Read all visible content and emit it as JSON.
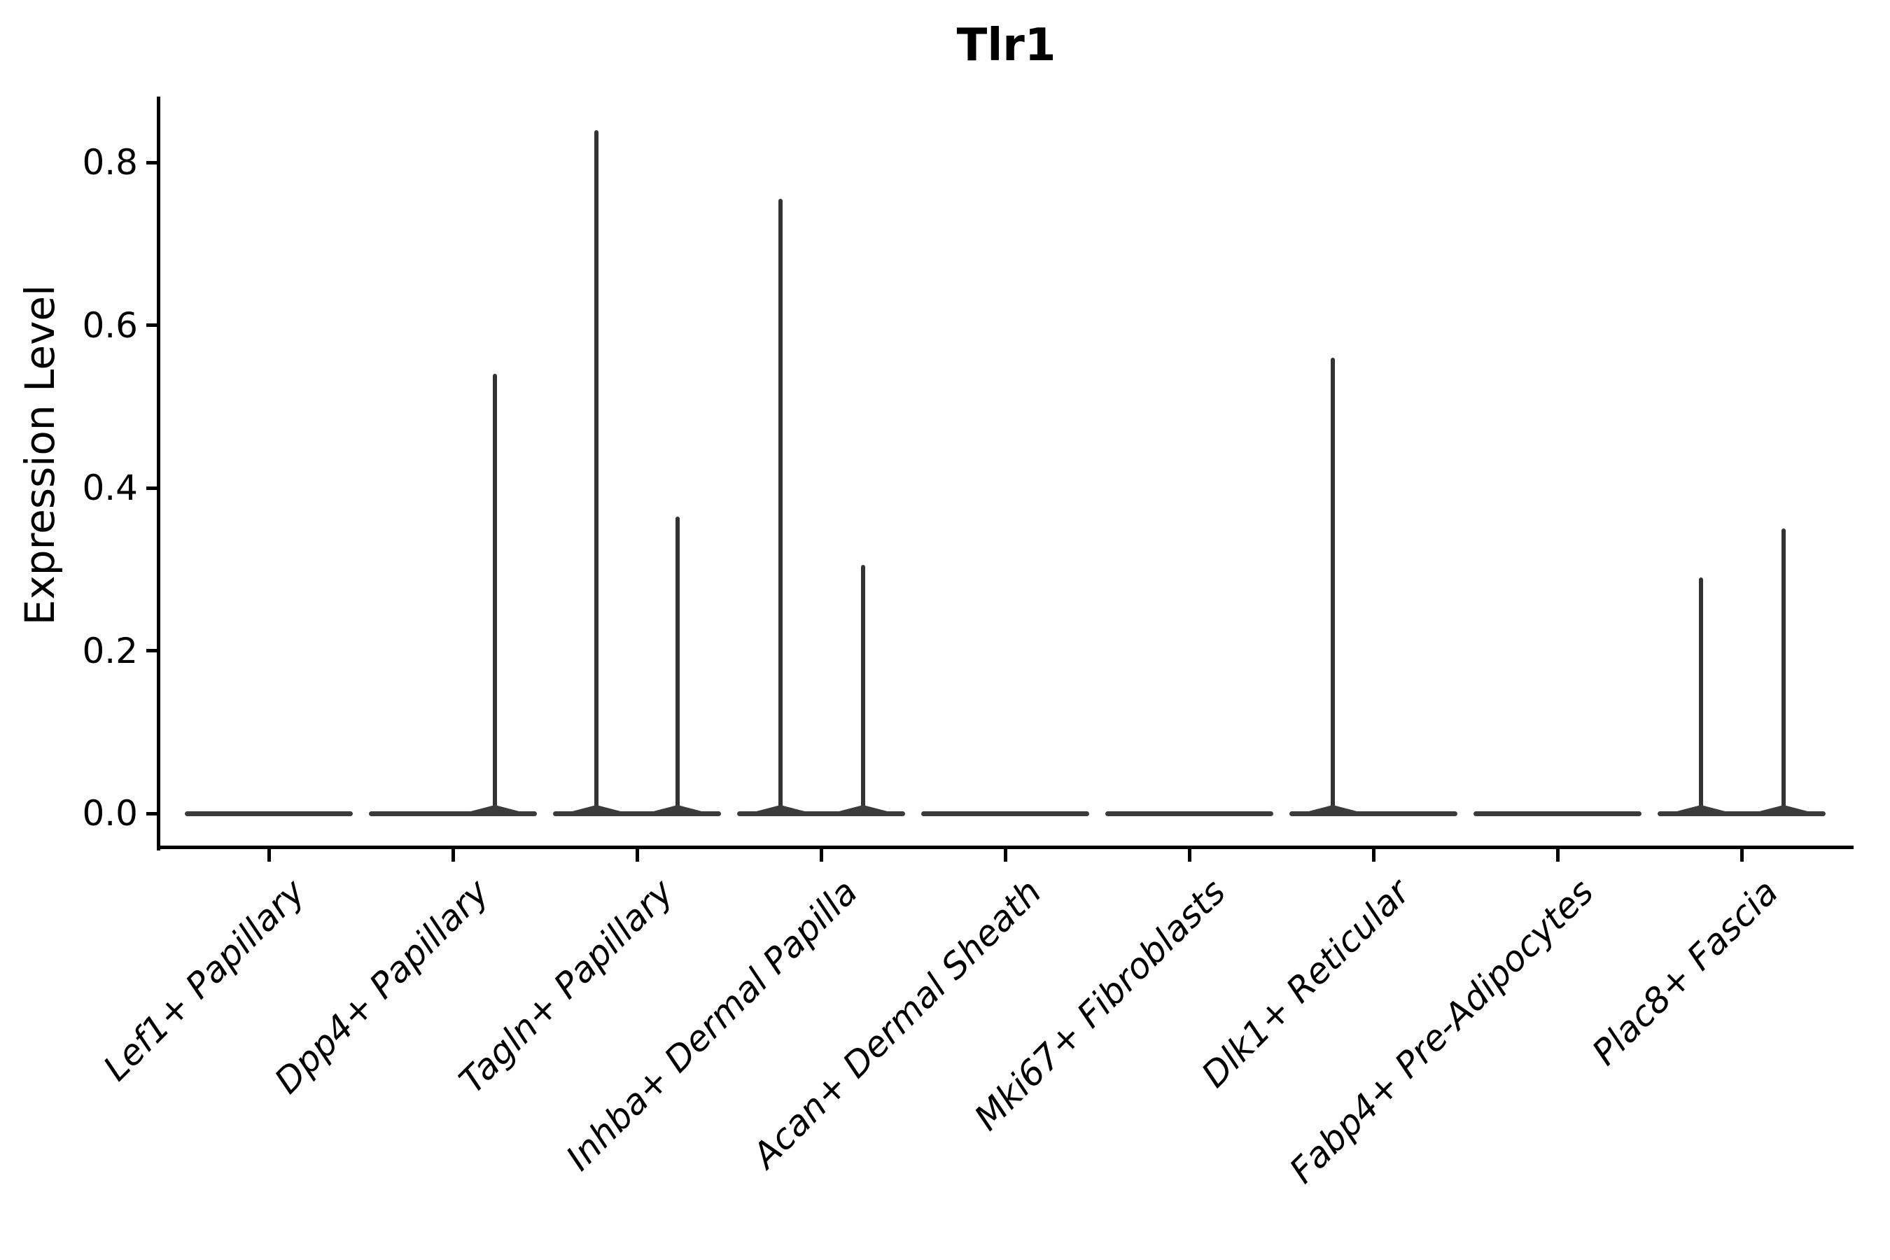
{
  "title": "Tlr1",
  "ylabel": "Expression Level",
  "colors": {
    "background": "#ffffff",
    "spine": "#000000",
    "violin_line": "#3b3b3b",
    "spike_line": "#333333",
    "text": "#000000"
  },
  "chart_data": {
    "type": "violin",
    "title": "Tlr1",
    "xlabel": "",
    "ylabel": "Expression Level",
    "ylim": [
      -0.04,
      0.88
    ],
    "grid": false,
    "legend_position": "none",
    "ytick_labels": [
      "0.0",
      "0.2",
      "0.4",
      "0.6",
      "0.8"
    ],
    "ytick_values": [
      0.0,
      0.2,
      0.4,
      0.6,
      0.8
    ],
    "categories": [
      "Lef1+ Papillary",
      "Dpp4+ Papillary",
      "Tagln+ Papillary",
      "Inhba+ Dermal Papilla",
      "Acan+ Dermal Sheath",
      "Mki67+ Fibroblasts",
      "Dlk1+ Reticular",
      "Fabp4+ Pre-Adipocytes",
      "Plac8+ Fascia"
    ],
    "violins": [
      {
        "category": "Lef1+ Papillary",
        "baseline_value": 0.0,
        "spikes": []
      },
      {
        "category": "Dpp4+ Papillary",
        "baseline_value": 0.0,
        "spikes": [
          {
            "offset": 0.23,
            "value": 0.54
          }
        ]
      },
      {
        "category": "Tagln+ Papillary",
        "baseline_value": 0.0,
        "spikes": [
          {
            "offset": -0.22,
            "value": 0.84
          },
          {
            "offset": 0.22,
            "value": 0.365
          }
        ]
      },
      {
        "category": "Inhba+ Dermal Papilla",
        "baseline_value": 0.0,
        "spikes": [
          {
            "offset": -0.22,
            "value": 0.755
          },
          {
            "offset": 0.23,
            "value": 0.305
          }
        ]
      },
      {
        "category": "Acan+ Dermal Sheath",
        "baseline_value": 0.0,
        "spikes": []
      },
      {
        "category": "Mki67+ Fibroblasts",
        "baseline_value": 0.0,
        "spikes": []
      },
      {
        "category": "Dlk1+ Reticular",
        "baseline_value": 0.0,
        "spikes": [
          {
            "offset": -0.22,
            "value": 0.56
          }
        ]
      },
      {
        "category": "Fabp4+ Pre-Adipocytes",
        "baseline_value": 0.0,
        "spikes": []
      },
      {
        "category": "Plac8+ Fascia",
        "baseline_value": 0.0,
        "spikes": [
          {
            "offset": -0.22,
            "value": 0.29
          },
          {
            "offset": 0.23,
            "value": 0.35
          }
        ]
      }
    ]
  }
}
